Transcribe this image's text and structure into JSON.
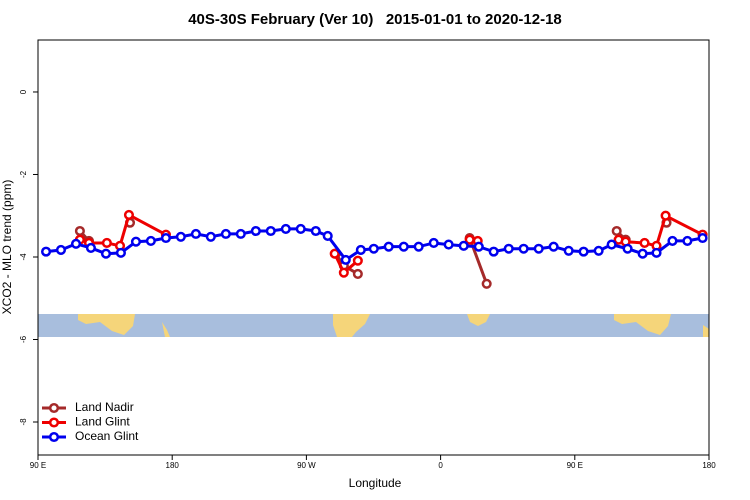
{
  "chart_data": {
    "type": "line",
    "title": "40S-30S February (Ver 10)   2015-01-01 to 2020-12-18",
    "x_label": "Longitude",
    "y_label": "XCO2 - MLO trend (ppm)",
    "xlim": [
      90,
      540
    ],
    "ylim": [
      -8.8,
      1.26
    ],
    "xticks": [
      {
        "value": 90,
        "label": "90 E"
      },
      {
        "value": 180,
        "label": "180"
      },
      {
        "value": 270,
        "label": "90 W"
      },
      {
        "value": 360,
        "label": "0"
      },
      {
        "value": 450,
        "label": "90 E"
      },
      {
        "value": 540,
        "label": "180"
      }
    ],
    "yticks": [
      0,
      -2,
      -4,
      -6,
      -8
    ],
    "legend": "bottom-left",
    "series": [
      {
        "name": "Land Nadir",
        "color": "#a52a2a",
        "x": [
          118.1,
          124.2,
          null,
          151.7,
          null,
          289.7,
          295.1,
          304.5,
          null,
          379.5,
          390.9,
          null,
          478.1,
          484.1,
          null,
          511.5
        ],
        "values": [
          -3.37,
          -3.61,
          null,
          -3.17,
          null,
          -3.92,
          -4.21,
          -4.41,
          null,
          -3.54,
          -4.65,
          null,
          -3.37,
          -3.58,
          null,
          -3.17
        ]
      },
      {
        "name": "Land Glint",
        "color": "#ee0000",
        "x": [
          118.1,
          124.2,
          136.2,
          145,
          151,
          175.8,
          null,
          289,
          295.1,
          304.5,
          null,
          379.5,
          384.9,
          null,
          479.4,
          484.1,
          496.8,
          504.8,
          510.9,
          535.7
        ],
        "values": [
          -3.58,
          -3.66,
          -3.66,
          -3.73,
          -2.98,
          -3.46,
          null,
          -3.92,
          -4.38,
          -4.09,
          null,
          -3.58,
          -3.61,
          null,
          -3.58,
          -3.63,
          -3.66,
          -3.73,
          -3.0,
          -3.46
        ]
      },
      {
        "name": "Ocean Glint",
        "color": "#0000ee",
        "x": [
          95.4,
          105.4,
          115.5,
          125.5,
          135.6,
          145.6,
          155.7,
          165.7,
          175.8,
          185.8,
          195.9,
          205.9,
          216,
          226,
          236.1,
          246.1,
          256.2,
          266.2,
          276.3,
          284.3,
          296.4,
          306.5,
          315.2,
          325.2,
          335.3,
          345.3,
          355.4,
          365.4,
          375.5,
          385.6,
          395.6,
          405.7,
          415.7,
          425.8,
          435.8,
          445.9,
          455.9,
          466,
          474.7,
          485.4,
          495.5,
          504.8,
          515.5,
          525.5,
          535.7
        ],
        "values": [
          -3.87,
          -3.83,
          -3.68,
          -3.78,
          -3.92,
          -3.9,
          -3.63,
          -3.61,
          -3.54,
          -3.51,
          -3.44,
          -3.51,
          -3.44,
          -3.44,
          -3.37,
          -3.37,
          -3.32,
          -3.32,
          -3.37,
          -3.49,
          -4.07,
          -3.83,
          -3.8,
          -3.75,
          -3.75,
          -3.75,
          -3.66,
          -3.7,
          -3.73,
          -3.75,
          -3.87,
          -3.8,
          -3.8,
          -3.8,
          -3.75,
          -3.85,
          -3.87,
          -3.85,
          -3.7,
          -3.8,
          -3.92,
          -3.9,
          -3.61,
          -3.61,
          -3.54
        ]
      }
    ]
  }
}
